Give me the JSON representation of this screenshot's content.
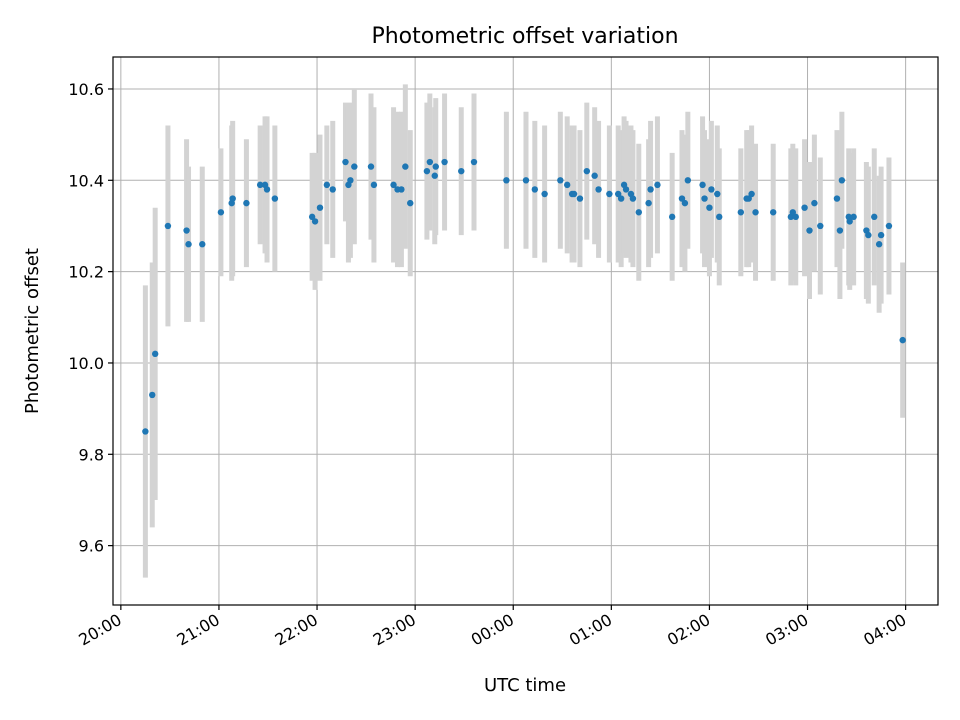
{
  "chart_data": {
    "type": "scatter",
    "title": "Photometric offset variation",
    "xlabel": "UTC time",
    "ylabel": "Photometric offset",
    "xlim_hours": [
      19.92,
      28.33
    ],
    "ylim": [
      9.47,
      10.67
    ],
    "x_tick_labels": [
      "20:00",
      "21:00",
      "22:00",
      "23:00",
      "00:00",
      "01:00",
      "02:00",
      "03:00",
      "04:00"
    ],
    "x_tick_hours": [
      20,
      21,
      22,
      23,
      24,
      25,
      26,
      27,
      28
    ],
    "y_ticks": [
      9.6,
      9.8,
      10.0,
      10.2,
      10.4,
      10.6
    ],
    "y_tick_labels": [
      "9.6",
      "9.8",
      "10.0",
      "10.2",
      "10.4",
      "10.6"
    ],
    "grid": true,
    "colors": {
      "point": "#1f77b4",
      "errorbar": "#d3d3d3"
    },
    "series": [
      {
        "x": [
          20.25,
          20.32,
          20.35,
          20.48,
          20.67,
          20.69,
          20.83,
          21.02,
          21.13,
          21.14,
          21.28,
          21.42,
          21.47,
          21.49,
          21.57,
          21.95,
          21.98,
          22.03,
          22.1,
          22.16,
          22.29,
          22.32,
          22.34,
          22.38,
          22.55,
          22.58,
          22.78,
          22.82,
          22.86,
          22.9,
          22.95,
          23.12,
          23.15,
          23.2,
          23.21,
          23.3,
          23.47,
          23.6,
          23.93,
          24.13,
          24.22,
          24.32,
          24.48,
          24.55,
          24.6,
          24.62,
          24.68,
          24.75,
          24.83,
          24.87,
          24.98,
          25.07,
          25.1,
          25.13,
          25.15,
          25.2,
          25.22,
          25.28,
          25.38,
          25.4,
          25.47,
          25.62,
          25.72,
          25.75,
          25.78,
          25.93,
          25.95,
          26.0,
          26.02,
          26.08,
          26.1,
          26.32,
          26.38,
          26.4,
          26.43,
          26.47,
          26.65,
          26.83,
          26.85,
          26.88,
          26.97,
          27.02,
          27.07,
          27.13,
          27.3,
          27.33,
          27.35,
          27.42,
          27.43,
          27.47,
          27.6,
          27.62,
          27.68,
          27.73,
          27.75,
          27.83,
          27.97
        ],
        "y": [
          9.85,
          9.93,
          10.02,
          10.3,
          10.29,
          10.26,
          10.26,
          10.33,
          10.35,
          10.36,
          10.35,
          10.39,
          10.39,
          10.38,
          10.36,
          10.32,
          10.31,
          10.34,
          10.39,
          10.38,
          10.44,
          10.39,
          10.4,
          10.43,
          10.43,
          10.39,
          10.39,
          10.38,
          10.38,
          10.43,
          10.35,
          10.42,
          10.44,
          10.41,
          10.43,
          10.44,
          10.42,
          10.44,
          10.4,
          10.4,
          10.38,
          10.37,
          10.4,
          10.39,
          10.37,
          10.37,
          10.36,
          10.42,
          10.41,
          10.38,
          10.37,
          10.37,
          10.36,
          10.39,
          10.38,
          10.37,
          10.36,
          10.33,
          10.35,
          10.38,
          10.39,
          10.32,
          10.36,
          10.35,
          10.4,
          10.39,
          10.36,
          10.34,
          10.38,
          10.37,
          10.32,
          10.33,
          10.36,
          10.36,
          10.37,
          10.33,
          10.33,
          10.32,
          10.33,
          10.32,
          10.34,
          10.29,
          10.35,
          10.3,
          10.36,
          10.29,
          10.4,
          10.32,
          10.31,
          10.32,
          10.29,
          10.28,
          10.32,
          10.26,
          10.28,
          10.3,
          10.05
        ],
        "yerr": [
          0.32,
          0.29,
          0.32,
          0.22,
          0.2,
          0.17,
          0.17,
          0.14,
          0.17,
          0.17,
          0.14,
          0.13,
          0.15,
          0.16,
          0.16,
          0.14,
          0.15,
          0.16,
          0.13,
          0.15,
          0.13,
          0.17,
          0.17,
          0.17,
          0.16,
          0.17,
          0.17,
          0.17,
          0.17,
          0.18,
          0.16,
          0.15,
          0.15,
          0.15,
          0.15,
          0.15,
          0.14,
          0.15,
          0.15,
          0.15,
          0.15,
          0.15,
          0.15,
          0.15,
          0.15,
          0.15,
          0.15,
          0.15,
          0.15,
          0.15,
          0.15,
          0.15,
          0.15,
          0.15,
          0.15,
          0.15,
          0.15,
          0.15,
          0.14,
          0.15,
          0.15,
          0.14,
          0.15,
          0.15,
          0.15,
          0.15,
          0.15,
          0.15,
          0.15,
          0.15,
          0.15,
          0.14,
          0.15,
          0.15,
          0.15,
          0.15,
          0.15,
          0.15,
          0.15,
          0.15,
          0.15,
          0.15,
          0.15,
          0.15,
          0.15,
          0.15,
          0.15,
          0.15,
          0.15,
          0.15,
          0.15,
          0.15,
          0.15,
          0.15,
          0.15,
          0.15,
          0.17
        ]
      }
    ]
  }
}
